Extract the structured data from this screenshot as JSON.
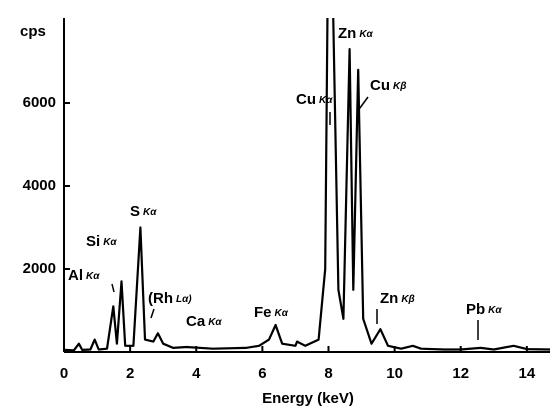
{
  "chart_data": {
    "type": "line",
    "y_label": "cps",
    "x_label": "Energy (keV)",
    "color": "#000000",
    "xlim": [
      0,
      14.7
    ],
    "ylim": [
      0,
      8000
    ],
    "xticks": [
      0,
      2,
      4,
      6,
      8,
      10,
      12,
      14
    ],
    "yticks": [
      2000,
      4000,
      6000
    ],
    "grid": false,
    "x": [
      0,
      0.3,
      0.45,
      0.55,
      0.8,
      0.93,
      1.05,
      1.3,
      1.49,
      1.6,
      1.74,
      1.85,
      2.1,
      2.31,
      2.45,
      2.7,
      2.84,
      3.0,
      3.3,
      3.7,
      4.5,
      5.5,
      5.9,
      6.2,
      6.4,
      6.6,
      7.0,
      7.05,
      7.3,
      7.7,
      7.9,
      7.98,
      8.12,
      8.3,
      8.45,
      8.64,
      8.75,
      8.9,
      9.05,
      9.3,
      9.57,
      9.8,
      10.2,
      10.55,
      10.8,
      11.5,
      12.0,
      12.6,
      13.0,
      13.6,
      14.0,
      14.7
    ],
    "values": [
      50,
      40,
      200,
      50,
      60,
      300,
      60,
      80,
      1100,
      200,
      1700,
      150,
      150,
      3000,
      300,
      250,
      450,
      200,
      100,
      120,
      80,
      100,
      150,
      300,
      650,
      200,
      150,
      250,
      150,
      300,
      2000,
      9000,
      9000,
      1500,
      800,
      7300,
      1500,
      6800,
      800,
      200,
      550,
      150,
      80,
      150,
      80,
      60,
      60,
      100,
      60,
      150,
      70,
      60
    ],
    "annotations": [
      {
        "element": "Zn",
        "line": "Kα"
      },
      {
        "element": "Cu",
        "line": "Kβ"
      },
      {
        "element": "Cu",
        "line": "Kα"
      },
      {
        "element": "S",
        "line": "Kα"
      },
      {
        "element": "Si",
        "line": "Kα"
      },
      {
        "element": "Al",
        "line": "Kα"
      },
      {
        "element": "(Rh",
        "line": "Lα)"
      },
      {
        "element": "Ca",
        "line": "Kα"
      },
      {
        "element": "Fe",
        "line": "Kα"
      },
      {
        "element": "Zn",
        "line": "Kβ"
      },
      {
        "element": "Pb",
        "line": "Kα"
      }
    ]
  }
}
